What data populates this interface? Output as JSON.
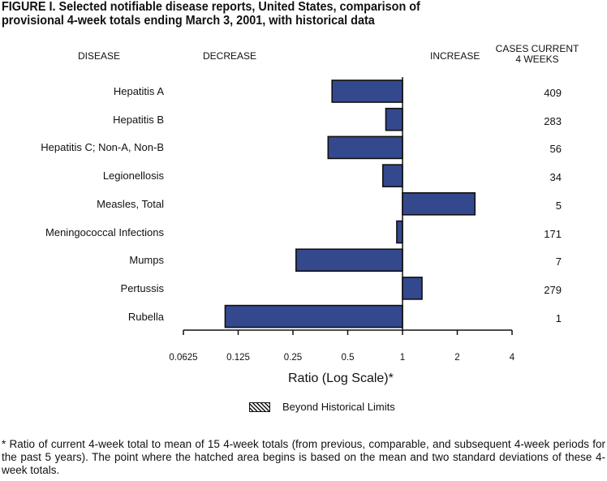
{
  "title": "FIGURE I.  Selected notifiable disease reports, United States, comparison of provisional 4-week totals ending March 3, 2001, with historical data",
  "title_lines": [
    "FIGURE I.  Selected notifiable disease reports, United States, comparison of",
    "provisional 4-week totals ending March 3, 2001, with historical data"
  ],
  "headers": {
    "disease": "DISEASE",
    "decrease": "DECREASE",
    "increase": "INCREASE",
    "cases_line1": "CASES CURRENT",
    "cases_line2": "4 WEEKS"
  },
  "chart_data": {
    "type": "bar",
    "orientation": "horizontal",
    "categories": [
      "Hepatitis A",
      "Hepatitis B",
      "Hepatitis C; Non-A, Non-B",
      "Legionellosis",
      "Measles, Total",
      "Meningococcal Infections",
      "Mumps",
      "Pertussis",
      "Rubella"
    ],
    "values": [
      0.41,
      0.81,
      0.39,
      0.78,
      2.5,
      0.93,
      0.26,
      1.28,
      0.106
    ],
    "cases_current_4_weeks": [
      "409",
      "283",
      "56",
      "34",
      "5",
      "171",
      "7",
      "279",
      "1"
    ],
    "xlabel": "Ratio (Log Scale)*",
    "xscale": "log2",
    "xlim": [
      0.0625,
      4
    ],
    "xticks": [
      "0.0625",
      "0.125",
      "0.25",
      "0.5",
      "1",
      "2",
      "4"
    ],
    "baseline": 1,
    "bar_color": "#34488e",
    "legend": {
      "label": "Beyond Historical Limits",
      "placement": "bottom"
    },
    "grid": false
  },
  "footnote": "* Ratio of current 4-week total to mean of 15 4-week totals (from previous, comparable, and subsequent 4-week periods for the past 5 years). The point where the hatched area begins is based on the mean and two standard deviations of these 4-week totals."
}
